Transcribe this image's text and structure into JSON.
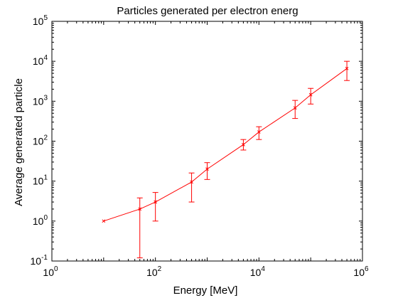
{
  "chart_data": {
    "type": "line",
    "title": "Particles generated per electron energ",
    "xlabel": "Energy [MeV]",
    "ylabel": "Average generated particle",
    "x_scale": "log",
    "y_scale": "log",
    "xlim": [
      1,
      1000000
    ],
    "ylim": [
      0.1,
      100000
    ],
    "grid": false,
    "x_ticks": [
      {
        "base": "10",
        "exp": "0",
        "value": 1
      },
      {
        "base": "10",
        "exp": "2",
        "value": 100
      },
      {
        "base": "10",
        "exp": "4",
        "value": 10000
      },
      {
        "base": "10",
        "exp": "6",
        "value": 1000000
      }
    ],
    "y_ticks": [
      {
        "base": "10",
        "exp": "-1",
        "value": 0.1
      },
      {
        "base": "10",
        "exp": "0",
        "value": 1
      },
      {
        "base": "10",
        "exp": "1",
        "value": 10
      },
      {
        "base": "10",
        "exp": "2",
        "value": 100
      },
      {
        "base": "10",
        "exp": "3",
        "value": 1000
      },
      {
        "base": "10",
        "exp": "4",
        "value": 10000
      },
      {
        "base": "10",
        "exp": "5",
        "value": 100000
      }
    ],
    "series": [
      {
        "color": "#ff0000",
        "points": [
          {
            "x": 10,
            "y": 1.0,
            "err_low": 1.0,
            "err_high": 1.0
          },
          {
            "x": 50,
            "y": 2.0,
            "err_low": 0.12,
            "err_high": 3.8
          },
          {
            "x": 100,
            "y": 3.0,
            "err_low": 1.0,
            "err_high": 5.2
          },
          {
            "x": 500,
            "y": 9.5,
            "err_low": 3.0,
            "err_high": 16
          },
          {
            "x": 1000,
            "y": 20,
            "err_low": 11,
            "err_high": 29
          },
          {
            "x": 5000,
            "y": 82,
            "err_low": 60,
            "err_high": 110
          },
          {
            "x": 10000,
            "y": 170,
            "err_low": 110,
            "err_high": 230
          },
          {
            "x": 50000,
            "y": 680,
            "err_low": 370,
            "err_high": 1050
          },
          {
            "x": 100000,
            "y": 1450,
            "err_low": 850,
            "err_high": 2100
          },
          {
            "x": 500000,
            "y": 6600,
            "err_low": 3300,
            "err_high": 10000
          }
        ]
      }
    ]
  }
}
